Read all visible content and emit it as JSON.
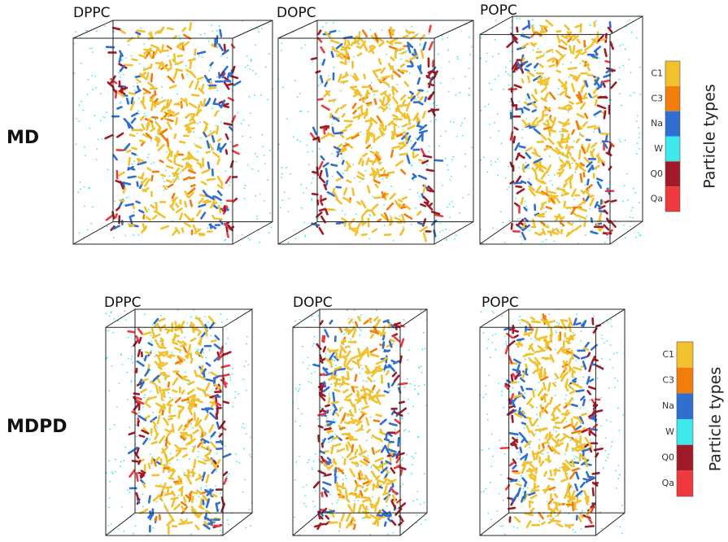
{
  "rows": [
    {
      "label": "MD",
      "panels": [
        "DPPC",
        "DOPC",
        "POPC"
      ],
      "legend": {
        "title": "Particle types",
        "items": [
          {
            "label": "C1",
            "color": "#f2c12e"
          },
          {
            "label": "C3",
            "color": "#f27c0c"
          },
          {
            "label": "Na",
            "color": "#2f6fd0"
          },
          {
            "label": "W",
            "color": "#3fe8ea"
          },
          {
            "label": "Q0",
            "color": "#a01a28"
          },
          {
            "label": "Qa",
            "color": "#ee3a3f"
          }
        ]
      }
    },
    {
      "label": "MDPD",
      "panels": [
        "DPPC",
        "DOPC",
        "POPC"
      ],
      "legend": {
        "title": "Particle types",
        "items": [
          {
            "label": "C1",
            "color": "#f2c12e"
          },
          {
            "label": "C3",
            "color": "#f27c0c"
          },
          {
            "label": "Na",
            "color": "#2f6fd0"
          },
          {
            "label": "W",
            "color": "#3fe8ea"
          },
          {
            "label": "Q0",
            "color": "#a01a28"
          },
          {
            "label": "Qa",
            "color": "#ee3a3f"
          }
        ]
      }
    }
  ]
}
